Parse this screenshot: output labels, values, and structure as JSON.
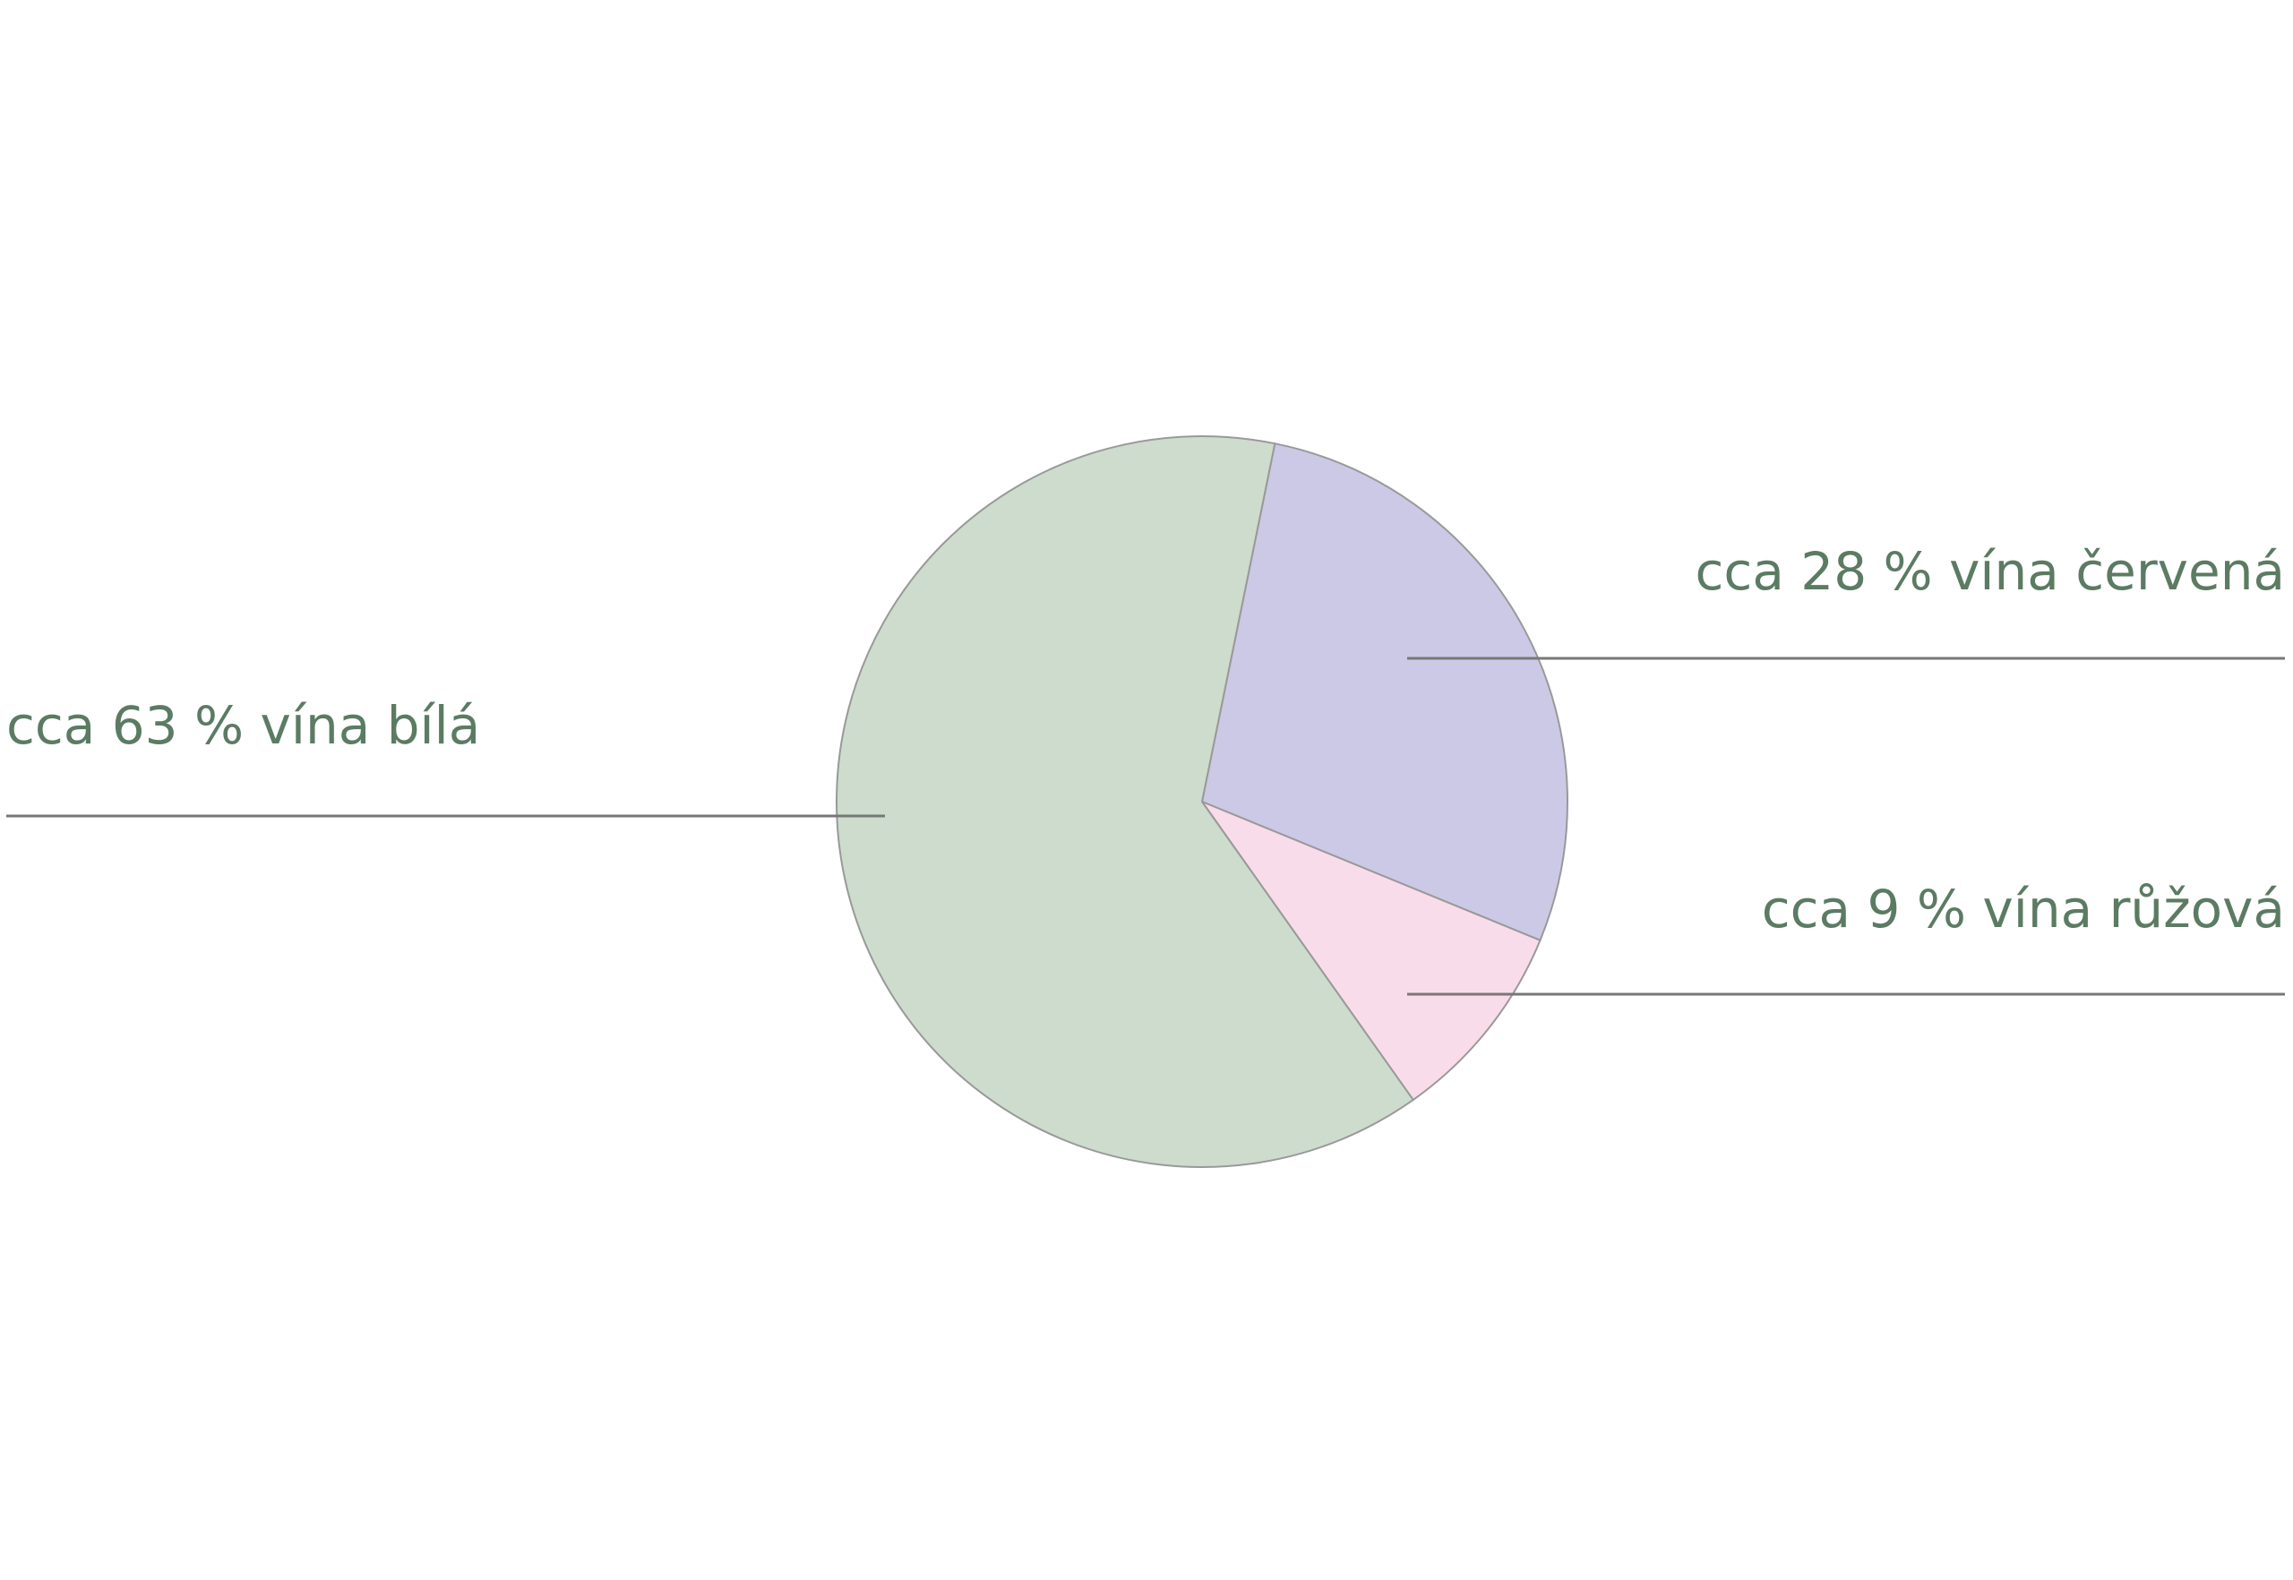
{
  "chart_data": {
    "type": "pie",
    "values": [
      28,
      9,
      63
    ],
    "value_labels": [
      "cca 28 % vína červená",
      "cca 9 % vína růžová",
      "cca 63 % vína bílá"
    ],
    "colors": [
      "#cbc9e6",
      "#f9dcea",
      "#cddccd"
    ]
  }
}
